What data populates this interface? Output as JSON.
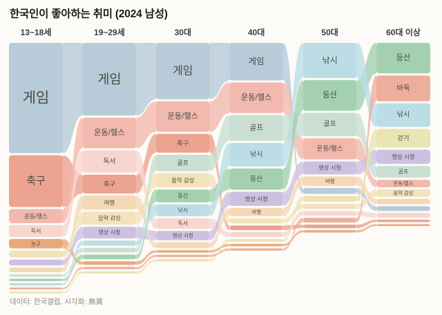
{
  "title": "한국인이 좋아하는 취미 (2024 남성)",
  "footer": "데이터: 한국갤럽, 시각화: 無異",
  "background_color": "#fcfbf7",
  "label_color": "#4c4a43",
  "chart_data": {
    "type": "area",
    "subtype": "alluvial-bump",
    "title": "한국인이 좋아하는 취미 (2024 남성)",
    "categories": [
      "13~18세",
      "19~29세",
      "30대",
      "40대",
      "50대",
      "60대 이상"
    ],
    "value_note": "No numeric axis shown; values are estimated share (%) from band heights. Each column is sorted by rank, top-aligned, with ribbons connecting the same hobby across age groups.",
    "legend": "none",
    "grid": false,
    "series": [
      {
        "name": "게임",
        "color": "#b7cbd8",
        "values": [
          47,
          31,
          24,
          16,
          2.5,
          2
        ]
      },
      {
        "name": "축구",
        "color": "#eca390",
        "values": [
          22,
          8,
          8,
          2,
          1.5,
          1
        ]
      },
      {
        "name": "운동/헬스",
        "color": "#f2b9ae",
        "values": [
          6,
          13,
          13,
          13,
          9,
          3.2
        ]
      },
      {
        "name": "독서",
        "color": "#f7d6cf",
        "values": [
          5,
          9.5,
          4.5,
          2,
          2,
          2
        ]
      },
      {
        "name": "농구",
        "color": "#e7a97b",
        "values": [
          4,
          1.5,
          1,
          1,
          1,
          0.8
        ]
      },
      {
        "name": "음악 감상",
        "color": "#f1e3ba",
        "values": [
          3,
          5.5,
          6,
          2.2,
          2.2,
          3.2
        ]
      },
      {
        "name": "영상 시청",
        "color": "#ccc1e0",
        "values": [
          2.5,
          5,
          4,
          6,
          5.5,
          6
        ]
      },
      {
        "name": "여행",
        "color": "#f5d8b6",
        "values": [
          2,
          6,
          2.5,
          3.5,
          4,
          2.2
        ]
      },
      {
        "name": "골프",
        "color": "#cadfd2",
        "values": [
          1,
          2,
          7,
          11,
          10,
          5
        ]
      },
      {
        "name": "등산",
        "color": "#a3d1b0",
        "values": [
          1,
          2,
          5.5,
          9,
          13,
          13
        ]
      },
      {
        "name": "낚시",
        "color": "#bcdde6",
        "values": [
          1,
          2.2,
          5,
          10,
          15,
          10
        ]
      },
      {
        "name": "바둑",
        "color": "#eeae9d",
        "values": [
          0.8,
          1,
          1,
          1,
          2,
          11
        ]
      },
      {
        "name": "걷기",
        "color": "#ebe4b3",
        "values": [
          0.8,
          1,
          1,
          1.2,
          2.5,
          8
        ]
      }
    ]
  }
}
